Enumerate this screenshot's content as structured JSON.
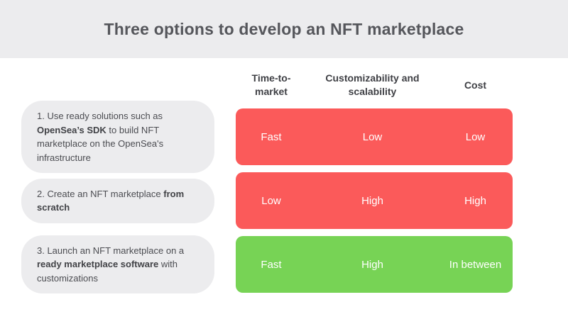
{
  "header": {
    "title": "Three options to develop an NFT marketplace"
  },
  "table": {
    "columns": [
      {
        "label": "Time-to-market"
      },
      {
        "label": "Customizability and scalability"
      },
      {
        "label": "Cost"
      }
    ],
    "rows": [
      {
        "label": {
          "prefix": "1. Use ready solutions such as ",
          "bold": "OpenSea’s SDK",
          "suffix": " to build NFT marketplace on the OpenSea's infrastructure"
        },
        "values": [
          "Fast",
          "Low",
          "Low"
        ],
        "sentiment": "negative"
      },
      {
        "label": {
          "prefix": "2. Create an NFT marketplace ",
          "bold": "from scratch",
          "suffix": ""
        },
        "values": [
          "Low",
          "High",
          "High"
        ],
        "sentiment": "negative"
      },
      {
        "label": {
          "prefix": "3. Launch an NFT marketplace on a ",
          "bold": "ready marketplace software",
          "suffix": " with customizations"
        },
        "values": [
          "Fast",
          "High",
          "In between"
        ],
        "sentiment": "positive"
      }
    ]
  },
  "colors": {
    "negative": "#FB5A5A",
    "positive": "#77D355",
    "pill_bg": "#ECECEE",
    "title_band_bg": "#ECECEE",
    "value_text": "#FFFFFF"
  }
}
